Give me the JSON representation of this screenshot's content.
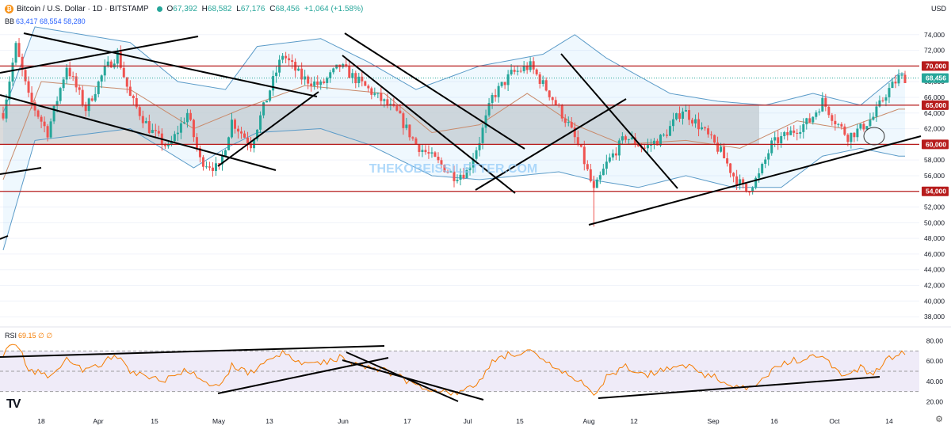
{
  "header": {
    "title": "Bitcoin / U.S. Dollar · 1D · BITSTAMP",
    "open_key": "O",
    "open": "67,392",
    "high_key": "H",
    "high": "68,582",
    "low_key": "L",
    "low": "67,176",
    "close_key": "C",
    "close": "68,456",
    "change": "+1,064 (+1.58%)",
    "currency": "USD",
    "coin_icon": "bitcoin-icon"
  },
  "bb_legend": {
    "label": "BB",
    "values": "63,417  68,554  58,280"
  },
  "rsi_legend": {
    "label": "RSI",
    "values": "69.15  ∅  ∅"
  },
  "watermark": "THEKOBEISSILETTER.COM",
  "logo": "TV",
  "colors": {
    "up": "#26a69a",
    "down": "#ef5350",
    "bb": "#5b9bc8",
    "rsi": "#f57c00",
    "level": "#b71c1c",
    "band": "#cfcfcf"
  },
  "chart_data": [
    {
      "type": "candlestick",
      "title": "",
      "ylim": [
        37000,
        76000
      ],
      "y_ticks": [
        "74,000",
        "72,000",
        "70,000",
        "68,000",
        "66,000",
        "64,000",
        "62,000",
        "60,000",
        "58,000",
        "56,000",
        "54,000",
        "52,000",
        "50,000",
        "48,000",
        "46,000",
        "44,000",
        "42,000",
        "40,000",
        "38,000"
      ],
      "x_ticks": [
        "18",
        "Apr",
        "15",
        "May",
        "13",
        "Jun",
        "17",
        "Jul",
        "15",
        "Aug",
        "12",
        "Sep",
        "16",
        "Oct",
        "14"
      ],
      "levels": [
        {
          "value": 70000,
          "label": "70,000"
        },
        {
          "value": 65000,
          "label": "65,000"
        },
        {
          "value": 60000,
          "label": "60,000"
        },
        {
          "value": 54000,
          "label": "54,000"
        }
      ],
      "band": [
        60000,
        65000
      ],
      "last_price": {
        "value": 68456,
        "label": "68,456"
      },
      "anchors": [
        [
          0,
          64000
        ],
        [
          4,
          72500
        ],
        [
          8,
          66000
        ],
        [
          14,
          61500
        ],
        [
          20,
          70000
        ],
        [
          26,
          64500
        ],
        [
          32,
          69500
        ],
        [
          36,
          71500
        ],
        [
          40,
          66000
        ],
        [
          46,
          62000
        ],
        [
          52,
          59500
        ],
        [
          58,
          64000
        ],
        [
          62,
          58000
        ],
        [
          68,
          56800
        ],
        [
          72,
          63000
        ],
        [
          78,
          60000
        ],
        [
          84,
          67000
        ],
        [
          88,
          71500
        ],
        [
          94,
          68500
        ],
        [
          100,
          67500
        ],
        [
          106,
          70000
        ],
        [
          112,
          68000
        ],
        [
          118,
          66000
        ],
        [
          124,
          64000
        ],
        [
          130,
          60000
        ],
        [
          136,
          58000
        ],
        [
          142,
          56000
        ],
        [
          146,
          56500
        ],
        [
          150,
          60500
        ],
        [
          154,
          66000
        ],
        [
          160,
          69000
        ],
        [
          166,
          70000
        ],
        [
          172,
          66500
        ],
        [
          178,
          62500
        ],
        [
          182,
          59000
        ],
        [
          186,
          54000
        ],
        [
          190,
          57500
        ],
        [
          196,
          61000
        ],
        [
          202,
          59500
        ],
        [
          208,
          61000
        ],
        [
          214,
          64500
        ],
        [
          220,
          62000
        ],
        [
          226,
          59000
        ],
        [
          230,
          56000
        ],
        [
          234,
          54000
        ],
        [
          238,
          56000
        ],
        [
          242,
          60000
        ],
        [
          248,
          61500
        ],
        [
          254,
          63000
        ],
        [
          258,
          65500
        ],
        [
          262,
          63000
        ],
        [
          266,
          61000
        ],
        [
          270,
          62000
        ],
        [
          274,
          63500
        ],
        [
          278,
          66500
        ],
        [
          282,
          68500
        ]
      ],
      "bb_upper_anchors": [
        [
          0,
          64000
        ],
        [
          10,
          75000
        ],
        [
          40,
          73000
        ],
        [
          55,
          68000
        ],
        [
          70,
          67000
        ],
        [
          80,
          72500
        ],
        [
          100,
          73500
        ],
        [
          115,
          70500
        ],
        [
          130,
          67000
        ],
        [
          150,
          70000
        ],
        [
          170,
          71500
        ],
        [
          180,
          74000
        ],
        [
          190,
          71000
        ],
        [
          210,
          66500
        ],
        [
          225,
          65500
        ],
        [
          240,
          65000
        ],
        [
          255,
          66500
        ],
        [
          270,
          65000
        ],
        [
          282,
          69000
        ]
      ],
      "bb_lower_anchors": [
        [
          0,
          46500
        ],
        [
          10,
          60500
        ],
        [
          40,
          62000
        ],
        [
          60,
          57000
        ],
        [
          70,
          59500
        ],
        [
          80,
          61500
        ],
        [
          100,
          62000
        ],
        [
          115,
          60000
        ],
        [
          135,
          56000
        ],
        [
          150,
          55500
        ],
        [
          175,
          56500
        ],
        [
          185,
          55500
        ],
        [
          200,
          54500
        ],
        [
          215,
          56000
        ],
        [
          230,
          54500
        ],
        [
          245,
          54500
        ],
        [
          258,
          58500
        ],
        [
          270,
          59500
        ],
        [
          282,
          58500
        ]
      ],
      "bb_mid_anchors": [
        [
          0,
          55500
        ],
        [
          12,
          68000
        ],
        [
          40,
          67000
        ],
        [
          60,
          62000
        ],
        [
          75,
          64500
        ],
        [
          95,
          67500
        ],
        [
          120,
          66500
        ],
        [
          135,
          61500
        ],
        [
          150,
          62500
        ],
        [
          165,
          66500
        ],
        [
          180,
          62500
        ],
        [
          195,
          60000
        ],
        [
          215,
          60500
        ],
        [
          232,
          59500
        ],
        [
          250,
          63000
        ],
        [
          265,
          62000
        ],
        [
          282,
          64500
        ]
      ]
    },
    {
      "type": "line",
      "title": "",
      "series_label": "RSI",
      "ylim": [
        18,
        82
      ],
      "y_ticks": [
        "80.00",
        "60.00",
        "40.00",
        "20.00"
      ],
      "band": [
        30,
        70
      ],
      "anchors": [
        [
          0,
          68
        ],
        [
          4,
          78
        ],
        [
          8,
          52
        ],
        [
          14,
          46
        ],
        [
          20,
          62
        ],
        [
          26,
          50
        ],
        [
          32,
          60
        ],
        [
          36,
          64
        ],
        [
          40,
          50
        ],
        [
          46,
          44
        ],
        [
          52,
          42
        ],
        [
          58,
          52
        ],
        [
          62,
          40
        ],
        [
          68,
          33
        ],
        [
          72,
          56
        ],
        [
          78,
          48
        ],
        [
          84,
          64
        ],
        [
          88,
          67
        ],
        [
          94,
          57
        ],
        [
          100,
          58
        ],
        [
          106,
          64
        ],
        [
          112,
          56
        ],
        [
          118,
          53
        ],
        [
          124,
          46
        ],
        [
          130,
          36
        ],
        [
          136,
          32
        ],
        [
          142,
          29
        ],
        [
          146,
          31
        ],
        [
          150,
          40
        ],
        [
          154,
          60
        ],
        [
          160,
          68
        ],
        [
          166,
          68
        ],
        [
          172,
          56
        ],
        [
          178,
          46
        ],
        [
          182,
          38
        ],
        [
          186,
          28
        ],
        [
          190,
          44
        ],
        [
          196,
          54
        ],
        [
          202,
          46
        ],
        [
          208,
          52
        ],
        [
          214,
          58
        ],
        [
          220,
          48
        ],
        [
          226,
          42
        ],
        [
          230,
          36
        ],
        [
          234,
          32
        ],
        [
          238,
          38
        ],
        [
          242,
          50
        ],
        [
          248,
          60
        ],
        [
          254,
          64
        ],
        [
          258,
          66
        ],
        [
          262,
          50
        ],
        [
          266,
          47
        ],
        [
          270,
          53
        ],
        [
          274,
          46
        ],
        [
          278,
          60
        ],
        [
          282,
          69
        ]
      ]
    }
  ]
}
